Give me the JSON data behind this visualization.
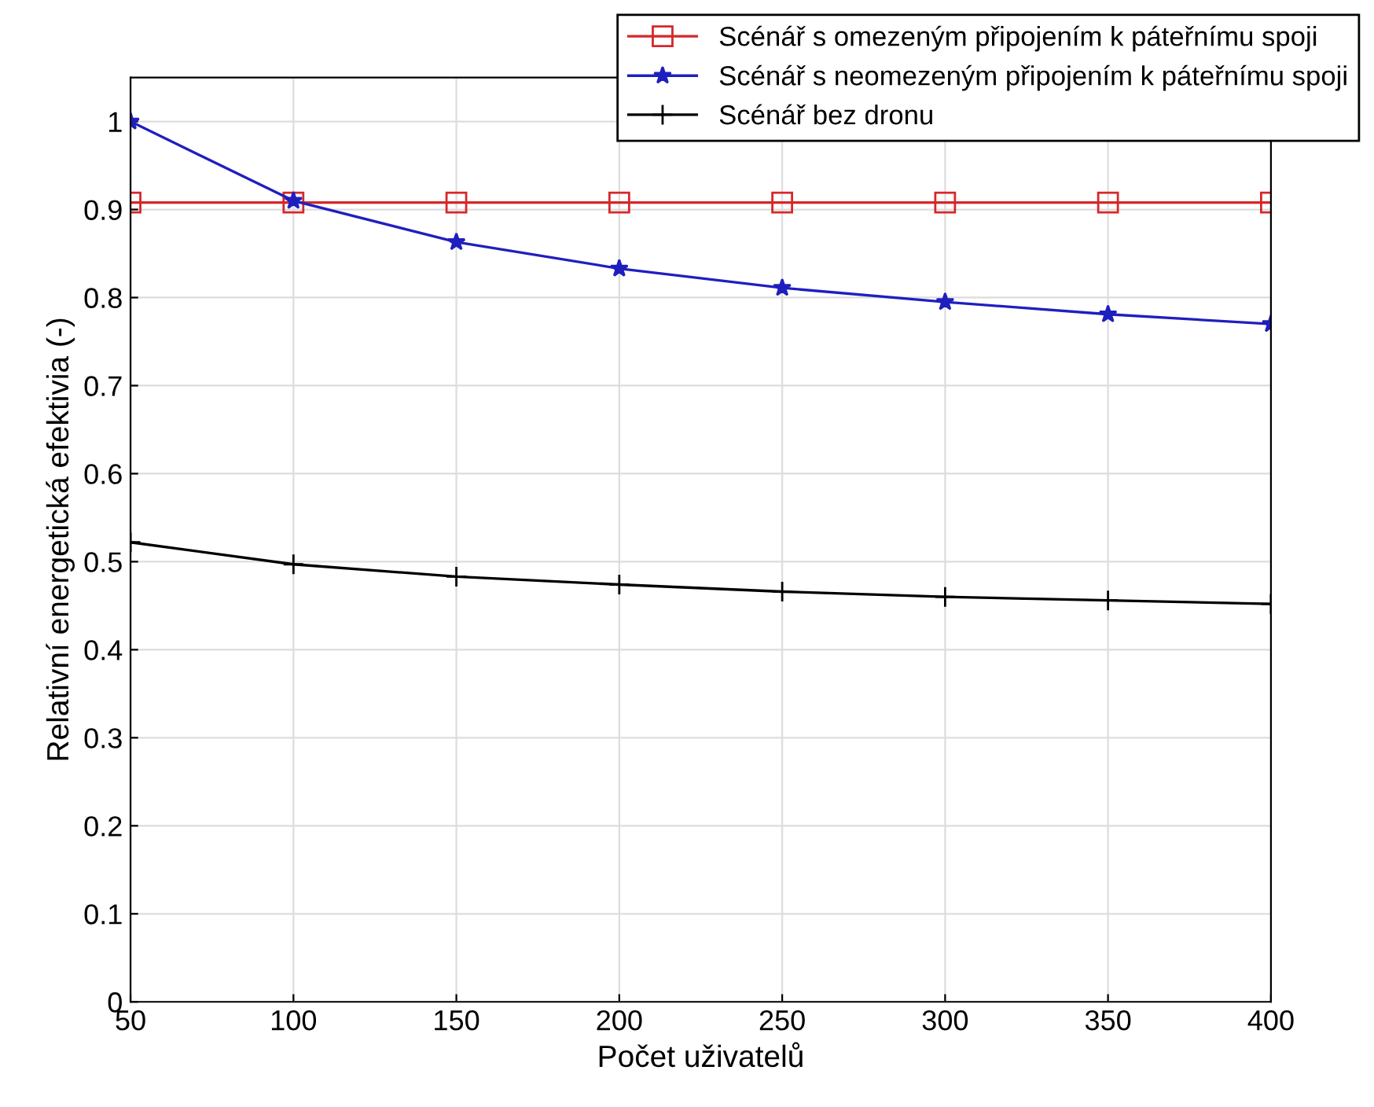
{
  "chart_data": {
    "type": "line",
    "xlabel": "Počet uživatelů",
    "ylabel": "Relativní energetická efektivia (-)",
    "x": [
      50,
      100,
      150,
      200,
      250,
      300,
      350,
      400
    ],
    "series": [
      {
        "name": "Scénář s omezeným připojením k páteřnímu spoji",
        "color": "#d62728",
        "marker": "square",
        "values": [
          0.908,
          0.908,
          0.908,
          0.908,
          0.908,
          0.908,
          0.908,
          0.908
        ]
      },
      {
        "name": "Scénář s neomezeným připojením k páteřnímu spoji",
        "color": "#1f1fbf",
        "marker": "star",
        "values": [
          1.0,
          0.91,
          0.863,
          0.833,
          0.811,
          0.795,
          0.781,
          0.77
        ]
      },
      {
        "name": "Scénář bez dronu",
        "color": "#000000",
        "marker": "cross",
        "values": [
          0.522,
          0.497,
          0.483,
          0.474,
          0.466,
          0.46,
          0.456,
          0.452
        ]
      }
    ],
    "xlim": [
      50,
      400
    ],
    "xticks": [
      50,
      100,
      150,
      200,
      250,
      300,
      350,
      400
    ],
    "ylim": [
      0,
      1.05
    ],
    "yticks": [
      0,
      0.1,
      0.2,
      0.3,
      0.4,
      0.5,
      0.6,
      0.7,
      0.8,
      0.9,
      1
    ],
    "grid": true,
    "legend": "top right",
    "line_style": "solid"
  }
}
